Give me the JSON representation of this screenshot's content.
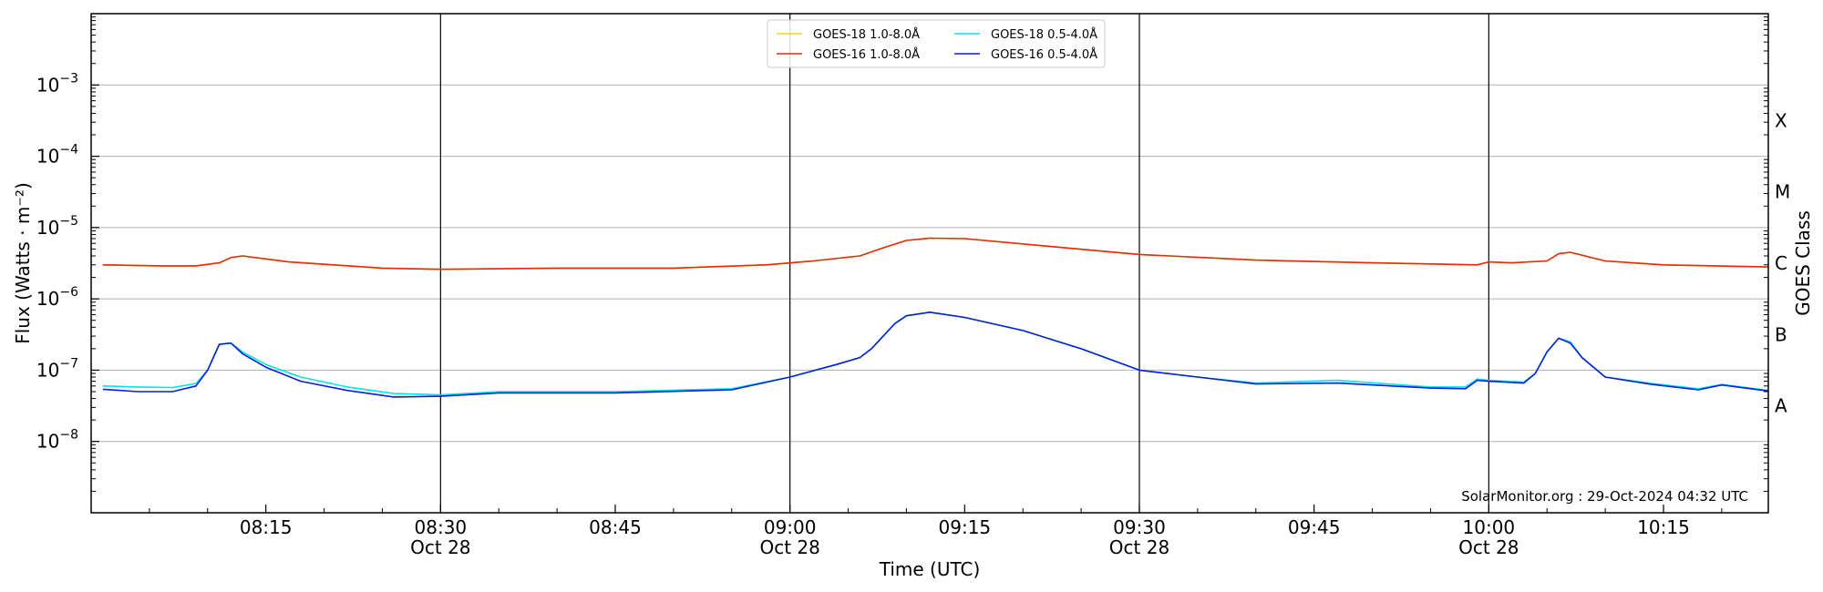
{
  "chart_data": {
    "type": "line",
    "title": "",
    "xlabel": "Time (UTC)",
    "ylabel": "Flux (Watts · m⁻²)",
    "y2label": "GOES Class",
    "yscale": "log",
    "ylim": [
      1e-09,
      0.01
    ],
    "xlim": [
      "2024-10-28 08:00",
      "2024-10-28 10:24"
    ],
    "grid": "horizontal",
    "legend_position": "top-center",
    "annotation": "SolarMonitor.org : 29-Oct-2024 04:32 UTC",
    "yticks": [
      {
        "value": 1e-08,
        "base": "10",
        "exp": "−8"
      },
      {
        "value": 1e-07,
        "base": "10",
        "exp": "−7"
      },
      {
        "value": 1e-06,
        "base": "10",
        "exp": "−6"
      },
      {
        "value": 1e-05,
        "base": "10",
        "exp": "−5"
      },
      {
        "value": 0.0001,
        "base": "10",
        "exp": "−4"
      },
      {
        "value": 0.001,
        "base": "10",
        "exp": "−3"
      }
    ],
    "xticks": [
      {
        "time": "08:15",
        "label": "08:15",
        "date": ""
      },
      {
        "time": "08:30",
        "label": "08:30",
        "date": "Oct 28"
      },
      {
        "time": "08:45",
        "label": "08:45",
        "date": ""
      },
      {
        "time": "09:00",
        "label": "09:00",
        "date": "Oct 28"
      },
      {
        "time": "09:15",
        "label": "09:15",
        "date": ""
      },
      {
        "time": "09:30",
        "label": "09:30",
        "date": "Oct 28"
      },
      {
        "time": "09:45",
        "label": "09:45",
        "date": ""
      },
      {
        "time": "10:00",
        "label": "10:00",
        "date": "Oct 28"
      },
      {
        "time": "10:15",
        "label": "10:15",
        "date": ""
      }
    ],
    "vlines": [
      "08:30",
      "09:00",
      "09:30",
      "10:00"
    ],
    "classes": [
      {
        "label": "A",
        "value": 3.16e-08
      },
      {
        "label": "B",
        "value": 3.16e-07
      },
      {
        "label": "C",
        "value": 3.16e-06
      },
      {
        "label": "M",
        "value": 3.16e-05
      },
      {
        "label": "X",
        "value": 0.000316
      }
    ],
    "series": [
      {
        "name": "GOES-18 1.0-8.0Å",
        "color": "#ffd700",
        "x": [
          "08:01",
          "08:06",
          "08:09",
          "08:11",
          "08:12",
          "08:13",
          "08:17",
          "08:25",
          "08:30",
          "08:40",
          "08:50",
          "08:58",
          "09:02",
          "09:06",
          "09:08",
          "09:10",
          "09:12",
          "09:15",
          "09:22",
          "09:30",
          "09:40",
          "09:50",
          "09:59",
          "10:00",
          "10:02",
          "10:05",
          "10:06",
          "10:07",
          "10:10",
          "10:15",
          "10:24"
        ],
        "values": [
          3e-06,
          2.9e-06,
          2.9e-06,
          3.2e-06,
          3.8e-06,
          4e-06,
          3.3e-06,
          2.7e-06,
          2.6e-06,
          2.7e-06,
          2.7e-06,
          3e-06,
          3.4e-06,
          4e-06,
          5.2e-06,
          6.6e-06,
          7.1e-06,
          7e-06,
          5.5e-06,
          4.2e-06,
          3.5e-06,
          3.2e-06,
          3e-06,
          3.3e-06,
          3.2e-06,
          3.4e-06,
          4.3e-06,
          4.5e-06,
          3.4e-06,
          3e-06,
          2.8e-06
        ]
      },
      {
        "name": "GOES-16 1.0-8.0Å",
        "color": "#e8290b",
        "x": [
          "08:01",
          "08:06",
          "08:09",
          "08:11",
          "08:12",
          "08:13",
          "08:17",
          "08:25",
          "08:30",
          "08:40",
          "08:50",
          "08:58",
          "09:02",
          "09:06",
          "09:08",
          "09:10",
          "09:12",
          "09:15",
          "09:22",
          "09:30",
          "09:40",
          "09:50",
          "09:59",
          "10:00",
          "10:02",
          "10:05",
          "10:06",
          "10:07",
          "10:10",
          "10:15",
          "10:24"
        ],
        "values": [
          3e-06,
          2.9e-06,
          2.9e-06,
          3.2e-06,
          3.8e-06,
          4e-06,
          3.3e-06,
          2.7e-06,
          2.6e-06,
          2.7e-06,
          2.7e-06,
          3e-06,
          3.4e-06,
          4e-06,
          5.2e-06,
          6.6e-06,
          7.1e-06,
          7e-06,
          5.5e-06,
          4.2e-06,
          3.5e-06,
          3.2e-06,
          3e-06,
          3.3e-06,
          3.2e-06,
          3.4e-06,
          4.3e-06,
          4.5e-06,
          3.4e-06,
          3e-06,
          2.8e-06
        ]
      },
      {
        "name": "GOES-18 0.5-4.0Å",
        "color": "#00e5ee",
        "x": [
          "08:01",
          "08:04",
          "08:07",
          "08:09",
          "08:10",
          "08:11",
          "08:12",
          "08:13",
          "08:15",
          "08:18",
          "08:22",
          "08:26",
          "08:30",
          "08:35",
          "08:45",
          "08:55",
          "09:00",
          "09:04",
          "09:06",
          "09:07",
          "09:08",
          "09:09",
          "09:10",
          "09:12",
          "09:15",
          "09:20",
          "09:25",
          "09:30",
          "09:35",
          "09:40",
          "09:47",
          "09:55",
          "09:58",
          "09:59",
          "10:00",
          "10:03",
          "10:04",
          "10:05",
          "10:06",
          "10:07",
          "10:08",
          "10:10",
          "10:14",
          "10:18",
          "10:20",
          "10:24"
        ],
        "values": [
          6e-08,
          5.8e-08,
          5.7e-08,
          6.5e-08,
          1e-07,
          2.3e-07,
          2.4e-07,
          1.8e-07,
          1.2e-07,
          8e-08,
          5.8e-08,
          4.7e-08,
          4.5e-08,
          5e-08,
          5e-08,
          5.5e-08,
          8e-08,
          1.2e-07,
          1.5e-07,
          2e-07,
          3e-07,
          4.5e-07,
          5.8e-07,
          6.5e-07,
          5.5e-07,
          3.6e-07,
          2e-07,
          1e-07,
          8e-08,
          6.6e-08,
          7.2e-08,
          5.8e-08,
          5.8e-08,
          7.5e-08,
          7.2e-08,
          6.8e-08,
          9e-08,
          1.8e-07,
          2.8e-07,
          2.5e-07,
          1.5e-07,
          8e-08,
          6.5e-08,
          5.5e-08,
          6.3e-08,
          5.2e-08
        ]
      },
      {
        "name": "GOES-16 0.5-4.0Å",
        "color": "#0a1fd6",
        "x": [
          "08:01",
          "08:04",
          "08:07",
          "08:09",
          "08:10",
          "08:11",
          "08:12",
          "08:13",
          "08:15",
          "08:18",
          "08:22",
          "08:26",
          "08:30",
          "08:35",
          "08:45",
          "08:55",
          "09:00",
          "09:04",
          "09:06",
          "09:07",
          "09:08",
          "09:09",
          "09:10",
          "09:12",
          "09:15",
          "09:20",
          "09:25",
          "09:30",
          "09:35",
          "09:40",
          "09:47",
          "09:55",
          "09:58",
          "09:59",
          "10:00",
          "10:03",
          "10:04",
          "10:05",
          "10:06",
          "10:07",
          "10:08",
          "10:10",
          "10:14",
          "10:18",
          "10:20",
          "10:24"
        ],
        "values": [
          5.4e-08,
          5e-08,
          5e-08,
          6e-08,
          1e-07,
          2.3e-07,
          2.4e-07,
          1.7e-07,
          1.1e-07,
          7e-08,
          5.2e-08,
          4.2e-08,
          4.3e-08,
          4.8e-08,
          4.8e-08,
          5.3e-08,
          8e-08,
          1.2e-07,
          1.5e-07,
          2e-07,
          3e-07,
          4.5e-07,
          5.8e-07,
          6.5e-07,
          5.5e-07,
          3.6e-07,
          2e-07,
          1e-07,
          8e-08,
          6.4e-08,
          6.6e-08,
          5.6e-08,
          5.5e-08,
          7.2e-08,
          7e-08,
          6.6e-08,
          9e-08,
          1.8e-07,
          2.8e-07,
          2.4e-07,
          1.5e-07,
          8e-08,
          6.3e-08,
          5.3e-08,
          6.2e-08,
          5.1e-08
        ]
      }
    ]
  }
}
